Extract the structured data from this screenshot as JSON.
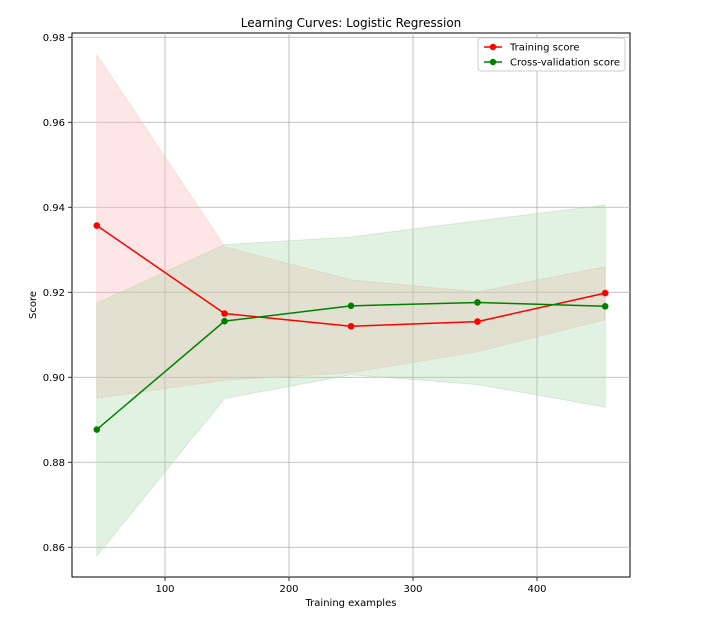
{
  "chart_data": {
    "type": "line",
    "title": "Learning Curves: Logistic Regression",
    "xlabel": "Training examples",
    "ylabel": "Score",
    "xlim": [
      25,
      475
    ],
    "ylim": [
      0.853,
      0.981
    ],
    "x_ticks": [
      100,
      200,
      300,
      400
    ],
    "y_ticks": [
      0.86,
      0.88,
      0.9,
      0.92,
      0.94,
      0.96,
      0.98
    ],
    "x_tick_labels": [
      "100",
      "200",
      "300",
      "400"
    ],
    "y_tick_labels": [
      "0.86",
      "0.88",
      "0.90",
      "0.92",
      "0.94",
      "0.96",
      "0.98"
    ],
    "grid": true,
    "legend_position": "top-right",
    "x": [
      45,
      148,
      250,
      352,
      455
    ],
    "series": [
      {
        "name": "Training score",
        "color": "#ff0000",
        "band_color": "#ffb3b3",
        "values": [
          0.9357,
          0.915,
          0.912,
          0.9131,
          0.9198
        ],
        "band_upper": [
          0.9758,
          0.9307,
          0.9229,
          0.9201,
          0.926
        ],
        "band_lower": [
          0.8951,
          0.8993,
          0.9011,
          0.906,
          0.9136
        ]
      },
      {
        "name": "Cross-validation score",
        "color": "#008000",
        "band_color": "#a8d8a8",
        "values": [
          0.8877,
          0.9132,
          0.9168,
          0.9176,
          0.9167
        ],
        "band_upper": [
          0.9174,
          0.9312,
          0.933,
          0.9368,
          0.9405
        ],
        "band_lower": [
          0.858,
          0.895,
          0.9006,
          0.8983,
          0.893
        ]
      }
    ]
  }
}
